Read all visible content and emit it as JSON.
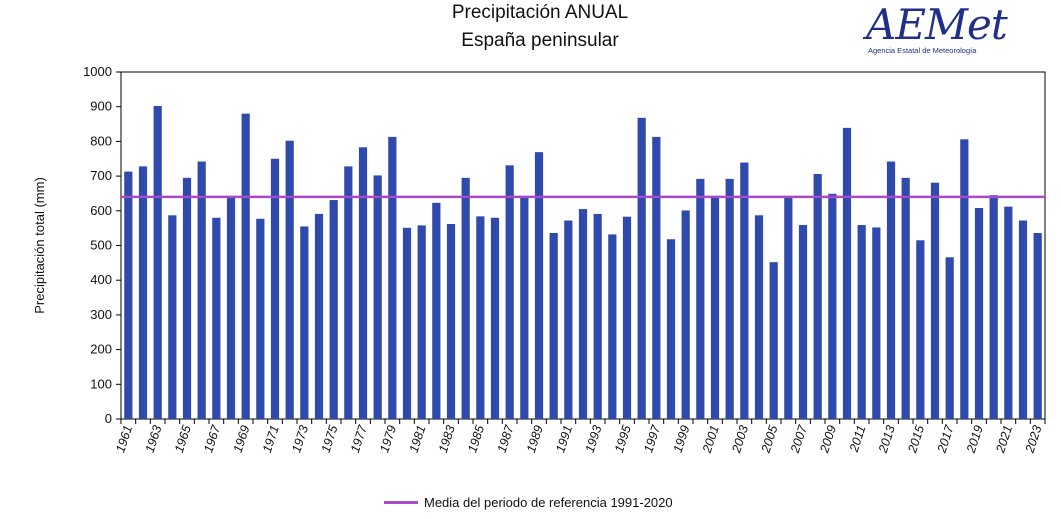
{
  "chart_data": {
    "type": "bar",
    "title": "Precipitación ANUAL",
    "subtitle": "España peninsular",
    "ylabel": "Precipitación total (mm)",
    "xlabel": "",
    "ylim": [
      0,
      1000
    ],
    "yticks": [
      0,
      100,
      200,
      300,
      400,
      500,
      600,
      700,
      800,
      900,
      1000
    ],
    "categories": [
      1961,
      1962,
      1963,
      1964,
      1965,
      1966,
      1967,
      1968,
      1969,
      1970,
      1971,
      1972,
      1973,
      1974,
      1975,
      1976,
      1977,
      1978,
      1979,
      1980,
      1981,
      1982,
      1983,
      1984,
      1985,
      1986,
      1987,
      1988,
      1989,
      1990,
      1991,
      1992,
      1993,
      1994,
      1995,
      1996,
      1997,
      1998,
      1999,
      2000,
      2001,
      2002,
      2003,
      2004,
      2005,
      2006,
      2007,
      2008,
      2009,
      2010,
      2011,
      2012,
      2013,
      2014,
      2015,
      2016,
      2017,
      2018,
      2019,
      2020,
      2021,
      2022,
      2023
    ],
    "xtick_labels": [
      "1961",
      "1963",
      "1965",
      "1967",
      "1969",
      "1971",
      "1973",
      "1975",
      "1977",
      "1979",
      "1981",
      "1983",
      "1985",
      "1987",
      "1989",
      "1991",
      "1993",
      "1995",
      "1997",
      "1999",
      "2001",
      "2003",
      "2005",
      "2007",
      "2009",
      "2011",
      "2013",
      "2015",
      "2017",
      "2019",
      "2021",
      "2023"
    ],
    "values": [
      713,
      728,
      902,
      587,
      695,
      742,
      580,
      640,
      880,
      577,
      750,
      802,
      555,
      591,
      631,
      728,
      783,
      702,
      813,
      551,
      558,
      623,
      562,
      695,
      584,
      580,
      731,
      637,
      769,
      536,
      572,
      605,
      591,
      532,
      583,
      868,
      813,
      518,
      601,
      692,
      637,
      692,
      739,
      587,
      452,
      637,
      559,
      706,
      649,
      839,
      559,
      552,
      742,
      695,
      515,
      681,
      466,
      806,
      608,
      645,
      612,
      572,
      536
    ],
    "bar_color": "#2f4aac",
    "reference_line": {
      "label": "Media del periodo de referencia 1991-2020",
      "value": 640,
      "color": "#a64ac9"
    },
    "grid": false,
    "legend_position": "bottom"
  },
  "logo": {
    "name": "AEMet",
    "subtitle": "Agencia Estatal de Meteorología"
  }
}
